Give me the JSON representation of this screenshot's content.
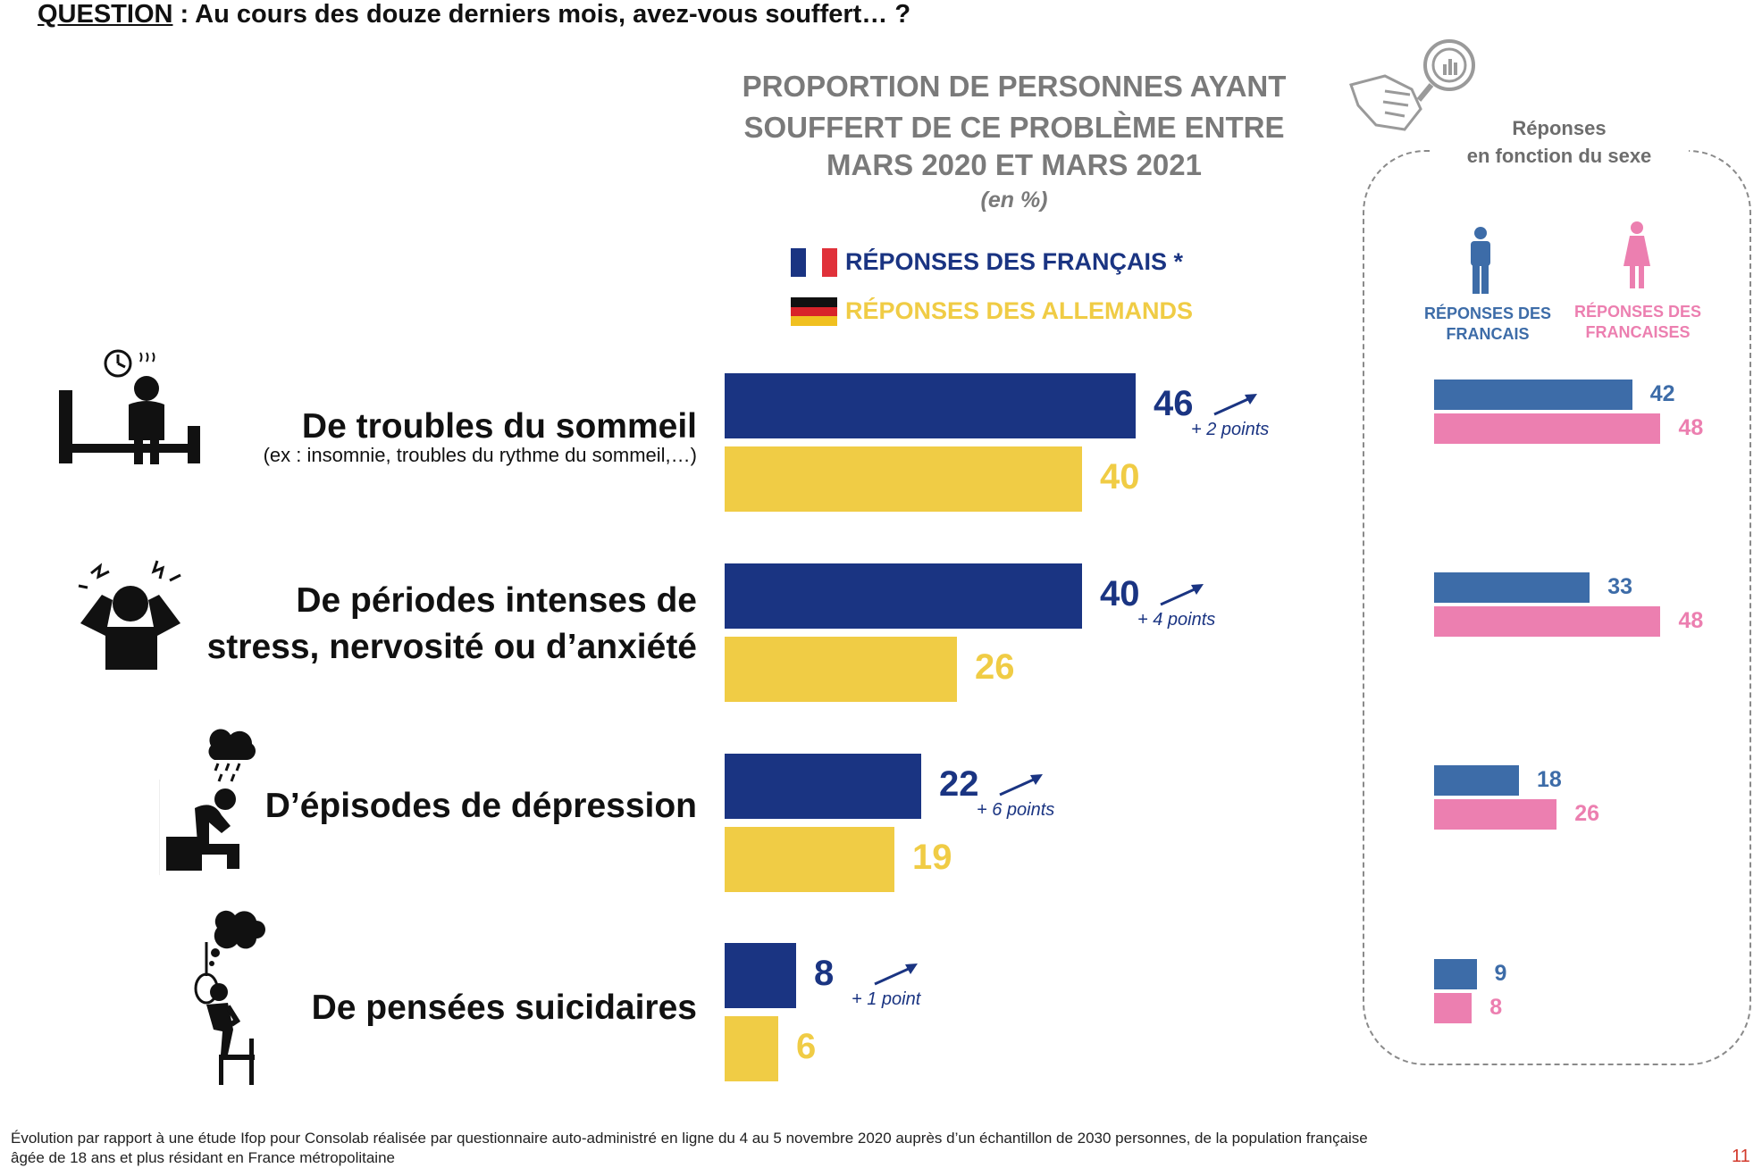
{
  "question": {
    "label": "QUESTION",
    "sep": " : ",
    "text": "Au cours des douze derniers mois, avez-vous souffert… ?"
  },
  "chart_title": [
    "PROPORTION DE PERSONNES AYANT",
    "SOUFFERT DE CE PROBLÈME ENTRE",
    "MARS 2020 ET MARS 2021"
  ],
  "unit": "(en %)",
  "legend": {
    "france": "RÉPONSES DES FRANÇAIS  *",
    "germany": "RÉPONSES DES ALLEMANDS"
  },
  "colors": {
    "france": "#1a3482",
    "germany": "#f0cc45",
    "men": "#3d6ca8",
    "women": "#ec7fb0",
    "france_flag_red": "#e0313a"
  },
  "icons": [
    "sleep-icon",
    "stress-icon",
    "depression-icon",
    "suicidal-thoughts-icon",
    "magnifier-chart-icon",
    "man-icon",
    "woman-icon",
    "arrow-up-right-icon"
  ],
  "chart_data": [
    {
      "type": "bar",
      "orientation": "horizontal",
      "categories": [
        "De troubles du sommeil",
        "De périodes intenses de stress, nervosité ou d’anxiété",
        "D’épisodes de dépression",
        "De pensées suicidaires"
      ],
      "category_notes": [
        "(ex : insomnie, troubles du rythme du sommeil,…)",
        "",
        "",
        ""
      ],
      "series": [
        {
          "name": "RÉPONSES DES FRANÇAIS",
          "values": [
            46,
            40,
            22,
            8
          ]
        },
        {
          "name": "RÉPONSES DES ALLEMANDS",
          "values": [
            40,
            26,
            19,
            6
          ]
        }
      ],
      "evolution": [
        "+ 2 points",
        "+ 4 points",
        "+ 6 points",
        "+ 1 point"
      ],
      "xlim": [
        0,
        100
      ]
    },
    {
      "type": "bar",
      "orientation": "horizontal",
      "title": "Réponses en fonction du sexe",
      "categories": [
        "De troubles du sommeil",
        "De périodes intenses de stress, nervosité ou d’anxiété",
        "D’épisodes de dépression",
        "De pensées suicidaires"
      ],
      "series": [
        {
          "name": "RÉPONSES DES FRANCAIS",
          "values": [
            42,
            33,
            18,
            9
          ]
        },
        {
          "name": "RÉPONSES DES FRANCAISES",
          "values": [
            48,
            48,
            26,
            8
          ]
        }
      ]
    }
  ],
  "sex_panel": {
    "title_line1": "Réponses",
    "title_line2": "en fonction du sexe",
    "men_label": [
      "RÉPONSES DES",
      "FRANCAIS"
    ],
    "women_label": [
      "RÉPONSES DES",
      "FRANCAISES"
    ]
  },
  "footnote": [
    "Évolution par rapport à une étude Ifop pour Consolab réalisée par questionnaire auto-administré en ligne du 4 au 5 novembre 2020 auprès d’un échantillon de 2030 personnes, de la population française",
    "âgée de 18 ans et plus résidant en France métropolitaine"
  ],
  "page_number": "11"
}
